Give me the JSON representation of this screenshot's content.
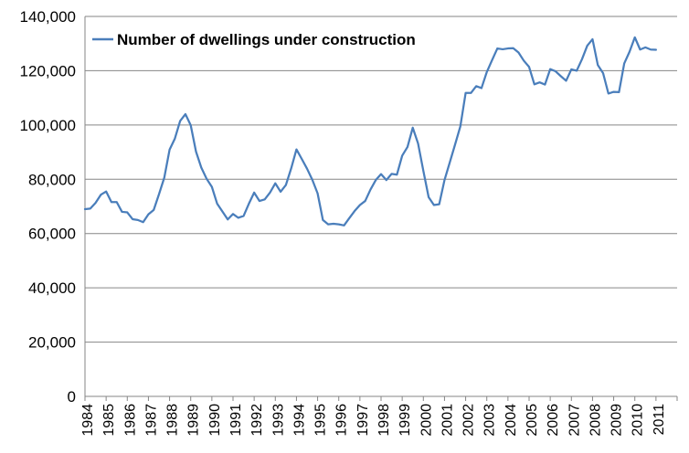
{
  "chart_data": {
    "type": "line",
    "title": "",
    "xlabel": "",
    "ylabel": "",
    "ylim": [
      0,
      140000
    ],
    "y_ticks": [
      0,
      20000,
      40000,
      60000,
      80000,
      100000,
      120000,
      140000
    ],
    "y_tick_labels": [
      "0",
      "20,000",
      "40,000",
      "60,000",
      "80,000",
      "100,000",
      "120,000",
      "140,000"
    ],
    "x_tick_labels": [
      "1984",
      "1985",
      "1986",
      "1987",
      "1988",
      "1989",
      "1990",
      "1991",
      "1992",
      "1993",
      "1994",
      "1995",
      "1996",
      "1997",
      "1998",
      "1999",
      "2000",
      "2001",
      "2002",
      "2003",
      "2004",
      "2005",
      "2006",
      "2007",
      "2008",
      "2009",
      "2010",
      "2011"
    ],
    "grid": "horizontal",
    "legend_position": "top-left",
    "series": [
      {
        "name": "Number of dwellings under construction",
        "color": "#4a7ebb",
        "x": [
          1984.0,
          1984.25,
          1984.5,
          1984.75,
          1985.0,
          1985.25,
          1985.5,
          1985.75,
          1986.0,
          1986.25,
          1986.5,
          1986.75,
          1987.0,
          1987.25,
          1987.5,
          1987.75,
          1988.0,
          1988.25,
          1988.5,
          1988.75,
          1989.0,
          1989.25,
          1989.5,
          1989.75,
          1990.0,
          1990.25,
          1990.5,
          1990.75,
          1991.0,
          1991.25,
          1991.5,
          1991.75,
          1992.0,
          1992.25,
          1992.5,
          1992.75,
          1993.0,
          1993.25,
          1993.5,
          1993.75,
          1994.0,
          1994.25,
          1994.5,
          1994.75,
          1995.0,
          1995.25,
          1995.5,
          1995.75,
          1996.0,
          1996.25,
          1996.5,
          1996.75,
          1997.0,
          1997.25,
          1997.5,
          1997.75,
          1998.0,
          1998.25,
          1998.5,
          1998.75,
          1999.0,
          1999.25,
          1999.5,
          1999.75,
          2000.0,
          2000.25,
          2000.5,
          2000.75,
          2001.0,
          2001.25,
          2001.5,
          2001.75,
          2002.0,
          2002.25,
          2002.5,
          2002.75,
          2003.0,
          2003.25,
          2003.5,
          2003.75,
          2004.0,
          2004.25,
          2004.5,
          2004.75,
          2005.0,
          2005.25,
          2005.5,
          2005.75,
          2006.0,
          2006.25,
          2006.5,
          2006.75,
          2007.0,
          2007.25,
          2007.5,
          2007.75,
          2008.0,
          2008.25,
          2008.5,
          2008.75,
          2009.0,
          2009.25,
          2009.5,
          2009.75,
          2010.0,
          2010.25,
          2010.5,
          2010.75,
          2011.0
        ],
        "values": [
          69000,
          69200,
          71300,
          74300,
          75500,
          71600,
          71600,
          68000,
          67800,
          65300,
          65000,
          64200,
          67100,
          68700,
          74500,
          80600,
          90900,
          95000,
          101500,
          104000,
          99900,
          90200,
          84300,
          80200,
          77200,
          71000,
          68100,
          65200,
          67200,
          65800,
          66500,
          71000,
          75100,
          72000,
          72600,
          75100,
          78500,
          75400,
          77900,
          84000,
          91000,
          87500,
          83900,
          79800,
          74800,
          65000,
          63400,
          63600,
          63400,
          63000,
          65700,
          68300,
          70500,
          72000,
          76200,
          79700,
          81900,
          79700,
          82000,
          81700,
          88700,
          91900,
          99000,
          93200,
          83100,
          73400,
          70500,
          70800,
          79700,
          86200,
          92800,
          99500,
          111800,
          111800,
          114300,
          113600,
          119500,
          123900,
          128200,
          127900,
          128200,
          128300,
          126700,
          123700,
          121400,
          115000,
          115700,
          114900,
          120600,
          119800,
          118000,
          116300,
          120500,
          120000,
          124200,
          129200,
          131600,
          122100,
          119100,
          111600,
          112200,
          112100,
          122700,
          127000,
          132300,
          127800,
          128600,
          127800,
          127700
        ]
      }
    ]
  }
}
